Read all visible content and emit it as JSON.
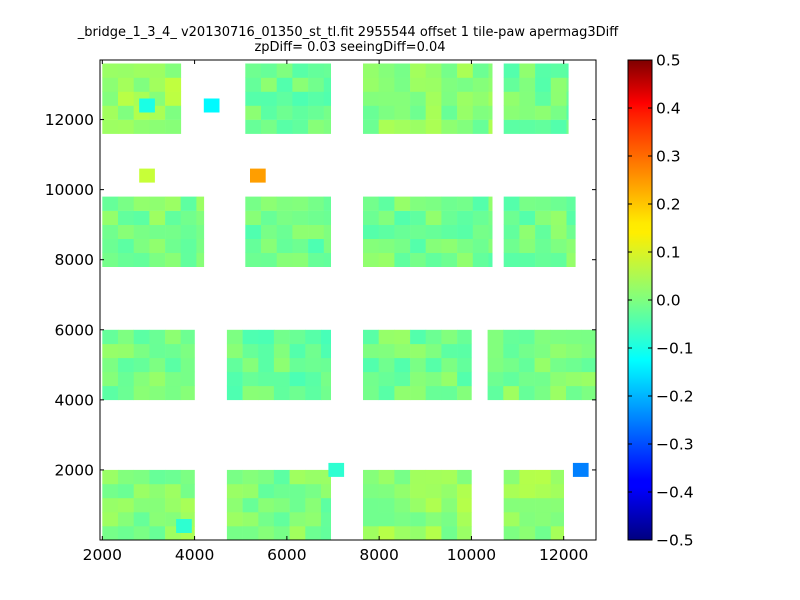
{
  "chart_data": {
    "type": "heatmap",
    "title": "_bridge_1_3_4_ v20130716_01350_st_tl.fit 2955544 offset 1 tile-paw apermag3Diff",
    "subtitle": "zpDiff= 0.03 seeingDiff=0.04",
    "xlabel": "",
    "ylabel": "",
    "xlim": [
      1950,
      12700
    ],
    "ylim": [
      0,
      13700
    ],
    "x_ticks": [
      "2000",
      "4000",
      "6000",
      "8000",
      "10000",
      "12000"
    ],
    "y_ticks": [
      "2000",
      "4000",
      "6000",
      "8000",
      "10000",
      "12000"
    ],
    "colorbar": {
      "range": [
        -0.5,
        0.5
      ],
      "colormap": "jet",
      "ticks": [
        "0.5",
        "0.4",
        "0.3",
        "0.2",
        "0.1",
        "0.0",
        "−0.1",
        "−0.2",
        "−0.3",
        "−0.4",
        "−0.5"
      ]
    },
    "cell_size": [
      340,
      400
    ],
    "blocks": [
      {
        "x": [
          2000,
          3700
        ],
        "y": [
          11600,
          13600
        ],
        "value": 0.03
      },
      {
        "x": [
          5100,
          6950
        ],
        "y": [
          11600,
          13600
        ],
        "value": -0.02
      },
      {
        "x": [
          7650,
          10450
        ],
        "y": [
          11600,
          13600
        ],
        "value": 0.01
      },
      {
        "x": [
          10700,
          12100
        ],
        "y": [
          11600,
          13600
        ],
        "value": -0.01
      },
      {
        "x": [
          2000,
          4200
        ],
        "y": [
          7800,
          9800
        ],
        "value": 0.0
      },
      {
        "x": [
          5100,
          6950
        ],
        "y": [
          7800,
          9800
        ],
        "value": -0.02
      },
      {
        "x": [
          7650,
          10450
        ],
        "y": [
          7800,
          9800
        ],
        "value": -0.01
      },
      {
        "x": [
          10700,
          12250
        ],
        "y": [
          7800,
          9800
        ],
        "value": -0.01
      },
      {
        "x": [
          2000,
          4000
        ],
        "y": [
          4000,
          6000
        ],
        "value": -0.01
      },
      {
        "x": [
          4700,
          6950
        ],
        "y": [
          4000,
          6000
        ],
        "value": -0.02
      },
      {
        "x": [
          7650,
          10000
        ],
        "y": [
          4000,
          6000
        ],
        "value": -0.01
      },
      {
        "x": [
          10350,
          12700
        ],
        "y": [
          4000,
          6000
        ],
        "value": 0.0
      },
      {
        "x": [
          2000,
          4000
        ],
        "y": [
          0,
          2000
        ],
        "value": 0.01
      },
      {
        "x": [
          4700,
          6950
        ],
        "y": [
          0,
          2000
        ],
        "value": 0.0
      },
      {
        "x": [
          7650,
          10000
        ],
        "y": [
          0,
          2000
        ],
        "value": 0.02
      },
      {
        "x": [
          10700,
          12000
        ],
        "y": [
          0,
          2000
        ],
        "value": 0.02
      }
    ],
    "notable_cells": [
      {
        "x": 2800,
        "y": 12200,
        "value": -0.1
      },
      {
        "x": 4200,
        "y": 12200,
        "value": -0.13
      },
      {
        "x": 2800,
        "y": 10200,
        "value": 0.07
      },
      {
        "x": 5200,
        "y": 10200,
        "value": 0.22
      },
      {
        "x": 3600,
        "y": 200,
        "value": -0.08
      },
      {
        "x": 6900,
        "y": 1800,
        "value": -0.08
      },
      {
        "x": 12200,
        "y": 1800,
        "value": -0.25
      }
    ]
  }
}
